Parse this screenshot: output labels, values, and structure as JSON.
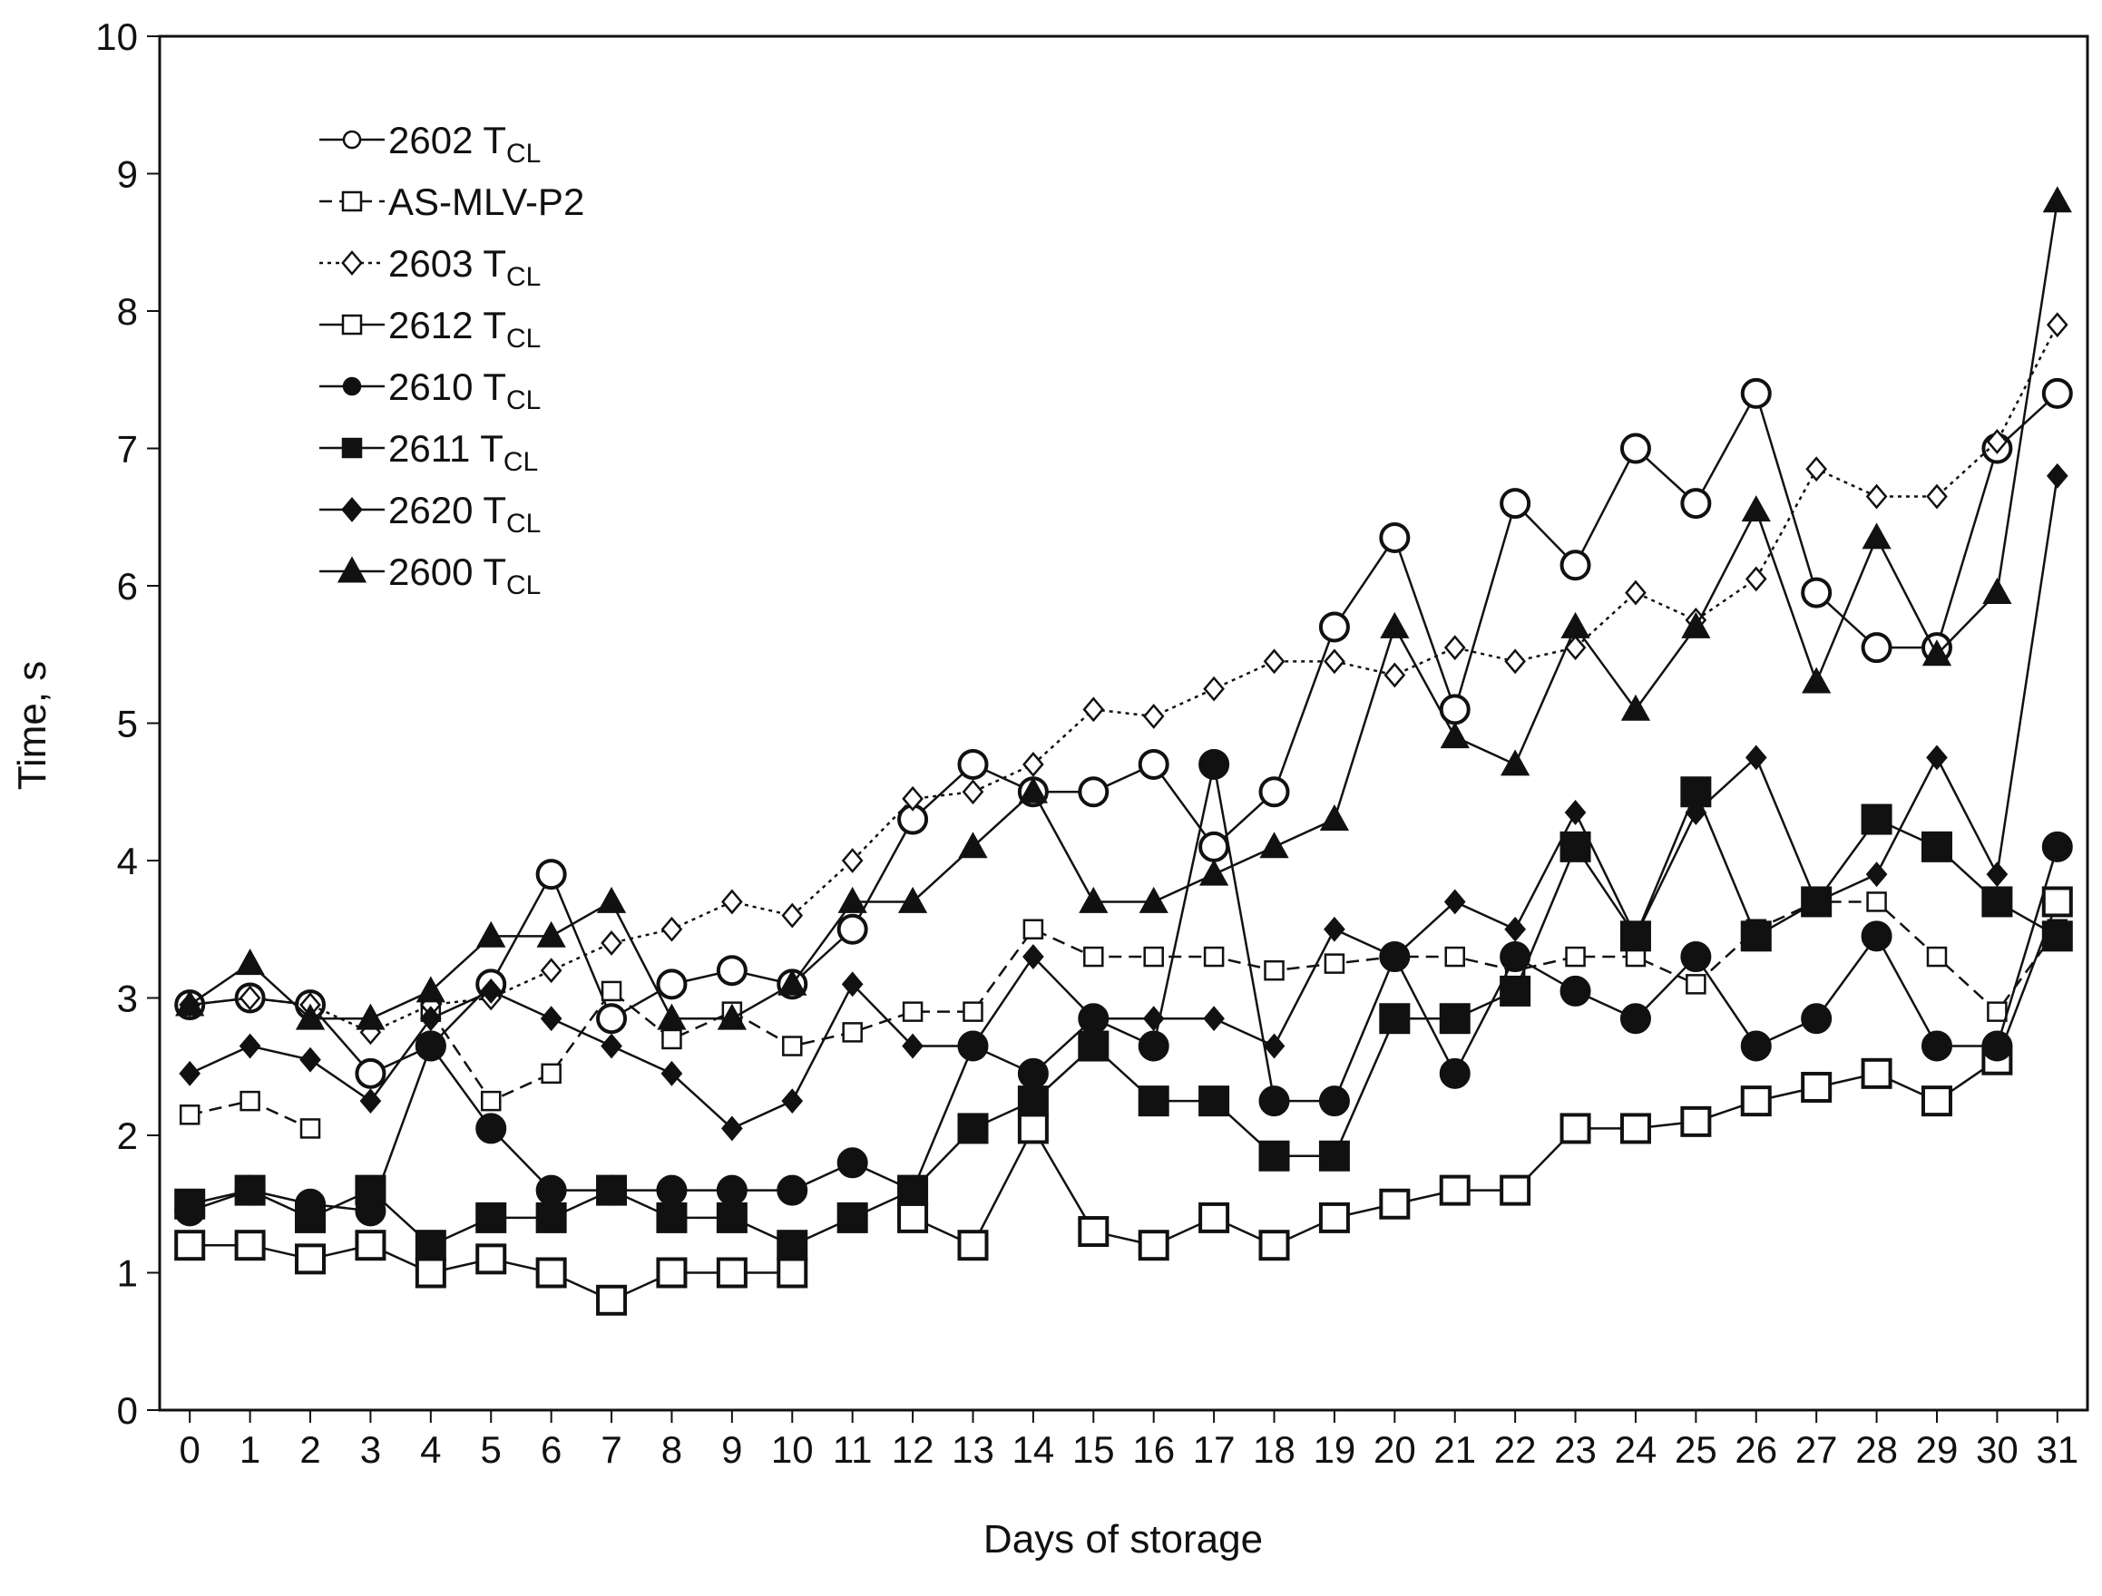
{
  "chart_data": {
    "type": "line",
    "xlabel": "Days of storage",
    "ylabel": "Time, s",
    "xlim": [
      -0.5,
      31.5
    ],
    "ylim": [
      0,
      10
    ],
    "x_ticks": [
      0,
      1,
      2,
      3,
      4,
      5,
      6,
      7,
      8,
      9,
      10,
      11,
      12,
      13,
      14,
      15,
      16,
      17,
      18,
      19,
      20,
      21,
      22,
      23,
      24,
      25,
      26,
      27,
      28,
      29,
      30,
      31
    ],
    "y_ticks": [
      0,
      1,
      2,
      3,
      4,
      5,
      6,
      7,
      8,
      9,
      10
    ],
    "grid": false,
    "legend_position": "top-left",
    "x": [
      0,
      1,
      2,
      3,
      4,
      5,
      6,
      7,
      8,
      9,
      10,
      11,
      12,
      13,
      14,
      15,
      16,
      17,
      18,
      19,
      20,
      21,
      22,
      23,
      24,
      25,
      26,
      27,
      28,
      29,
      30,
      31
    ],
    "series": [
      {
        "name": "2602",
        "name_sub": "CL",
        "name_main": "T",
        "marker": "circle-open",
        "marker_size": "large",
        "line": "solid",
        "values": [
          2.95,
          3.0,
          2.95,
          2.45,
          2.65,
          3.1,
          3.9,
          2.85,
          3.1,
          3.2,
          3.1,
          3.5,
          4.3,
          4.7,
          4.5,
          4.5,
          4.7,
          4.1,
          4.5,
          5.7,
          6.35,
          5.1,
          6.6,
          6.15,
          7.0,
          6.6,
          7.4,
          5.95,
          5.55,
          5.55,
          7.0,
          7.4
        ]
      },
      {
        "name": "AS-MLV-P2",
        "name_sub": "",
        "name_main": "",
        "marker": "square-open",
        "marker_size": "small",
        "line": "dash",
        "values": [
          2.15,
          2.25,
          2.05,
          null,
          2.9,
          2.25,
          2.45,
          3.05,
          2.7,
          2.9,
          2.65,
          2.75,
          2.9,
          2.9,
          3.5,
          3.3,
          3.3,
          3.3,
          3.2,
          3.25,
          3.3,
          3.3,
          3.2,
          3.3,
          3.3,
          3.1,
          3.5,
          3.7,
          3.7,
          3.3,
          2.9,
          3.5
        ]
      },
      {
        "name": "2603",
        "name_sub": "CL",
        "name_main": "T",
        "marker": "diamond-open",
        "marker_size": "small",
        "line": "dotted",
        "values": [
          2.95,
          3.0,
          2.95,
          2.75,
          2.95,
          3.0,
          3.2,
          3.4,
          3.5,
          3.7,
          3.6,
          4.0,
          4.45,
          4.5,
          4.7,
          5.1,
          5.05,
          5.25,
          5.45,
          5.45,
          5.35,
          5.55,
          5.45,
          5.55,
          5.95,
          5.75,
          6.05,
          6.85,
          6.65,
          6.65,
          7.05,
          7.9
        ]
      },
      {
        "name": "2612",
        "name_sub": "CL",
        "name_main": "T",
        "marker": "square-open",
        "marker_size": "large",
        "line": "solid",
        "values": [
          1.2,
          1.2,
          1.1,
          1.2,
          1.0,
          1.1,
          1.0,
          0.8,
          1.0,
          1.0,
          1.0,
          null,
          1.4,
          1.2,
          2.05,
          1.3,
          1.2,
          1.4,
          1.2,
          1.4,
          1.5,
          1.6,
          1.6,
          2.05,
          2.05,
          2.1,
          2.25,
          2.35,
          2.45,
          2.25,
          2.55,
          3.7
        ]
      },
      {
        "name": "2610",
        "name_sub": "CL",
        "name_main": "T",
        "marker": "circle-filled",
        "marker_size": "large",
        "line": "solid",
        "values": [
          1.45,
          1.6,
          1.5,
          1.45,
          2.65,
          2.05,
          1.6,
          1.6,
          1.6,
          1.6,
          1.6,
          1.8,
          1.6,
          2.65,
          2.45,
          2.85,
          2.65,
          4.7,
          2.25,
          2.25,
          3.3,
          2.45,
          3.3,
          3.05,
          2.85,
          3.3,
          2.65,
          2.85,
          3.45,
          2.65,
          2.65,
          4.1
        ]
      },
      {
        "name": "2611",
        "name_sub": "CL",
        "name_main": "T",
        "marker": "square-filled",
        "marker_size": "large",
        "line": "solid",
        "values": [
          1.5,
          1.6,
          1.4,
          1.6,
          1.2,
          1.4,
          1.4,
          1.6,
          1.4,
          1.4,
          1.2,
          1.4,
          1.6,
          2.05,
          2.25,
          2.65,
          2.25,
          2.25,
          1.85,
          1.85,
          2.85,
          2.85,
          3.05,
          4.1,
          3.45,
          4.5,
          3.45,
          3.7,
          4.3,
          4.1,
          3.7,
          3.45
        ]
      },
      {
        "name": "2620",
        "name_sub": "CL",
        "name_main": "T",
        "marker": "diamond-filled",
        "marker_size": "small",
        "line": "solid",
        "values": [
          2.45,
          2.65,
          2.55,
          2.25,
          2.85,
          3.05,
          2.85,
          2.65,
          2.45,
          2.05,
          2.25,
          3.1,
          2.65,
          2.65,
          3.3,
          2.85,
          2.85,
          2.85,
          2.65,
          3.5,
          3.3,
          3.7,
          3.5,
          4.35,
          3.45,
          4.35,
          4.75,
          3.7,
          3.9,
          4.75,
          3.9,
          6.8
        ]
      },
      {
        "name": "2600",
        "name_sub": "CL",
        "name_main": "T",
        "marker": "triangle-filled",
        "marker_size": "small",
        "line": "solid",
        "values": [
          2.95,
          3.25,
          2.85,
          2.85,
          3.05,
          3.45,
          3.45,
          3.7,
          2.85,
          2.85,
          3.1,
          3.7,
          3.7,
          4.1,
          4.5,
          3.7,
          3.7,
          3.9,
          4.1,
          4.3,
          5.7,
          4.9,
          4.7,
          5.7,
          5.1,
          5.7,
          6.55,
          5.3,
          6.35,
          5.5,
          5.95,
          8.8
        ]
      }
    ],
    "legend_labels": [
      {
        "main": "2602 T",
        "sub": "CL"
      },
      {
        "main": "AS-MLV-P2",
        "sub": ""
      },
      {
        "main": "2603 T",
        "sub": "CL"
      },
      {
        "main": "2612 T",
        "sub": "CL"
      },
      {
        "main": "2610 T",
        "sub": "CL"
      },
      {
        "main": "2611 T",
        "sub": "CL"
      },
      {
        "main": "2620 T",
        "sub": "CL"
      },
      {
        "main": "2600 T",
        "sub": "CL"
      }
    ],
    "colors": {
      "ink": "#111111",
      "background": "#ffffff"
    }
  }
}
